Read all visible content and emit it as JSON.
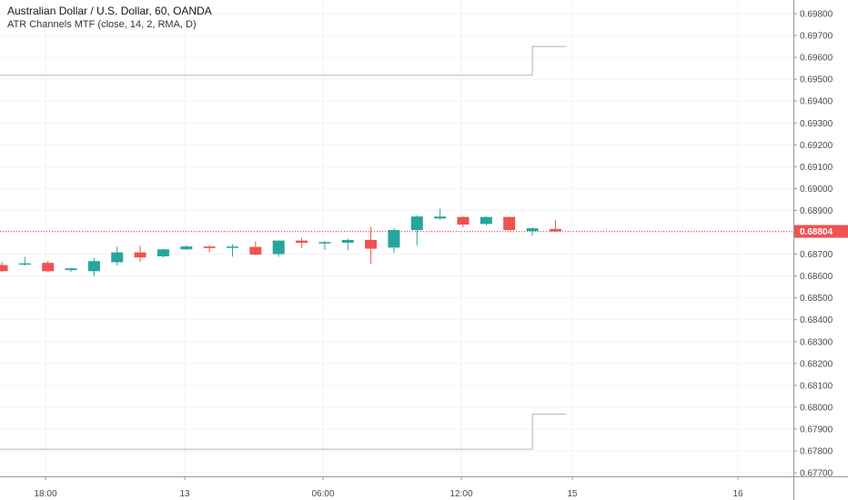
{
  "legend": {
    "symbol_line": "Australian Dollar / U.S. Dollar, 60, OANDA",
    "indicator_line": "ATR Channels MTF (close, 14, 2, RMA, D)"
  },
  "chart_data": {
    "type": "candlestick",
    "x_tick_labels": [
      "18:00",
      "13",
      "06:00",
      "12:00",
      "15",
      "16"
    ],
    "y_ticks": [
      "0.69800",
      "0.69700",
      "0.69600",
      "0.69500",
      "0.69400",
      "0.69300",
      "0.69200",
      "0.69100",
      "0.69000",
      "0.68900",
      "0.68800",
      "0.68700",
      "0.68600",
      "0.68500",
      "0.68400",
      "0.68300",
      "0.68200",
      "0.68100",
      "0.68000",
      "0.67900",
      "0.67800",
      "0.67700"
    ],
    "ylim": [
      0.6765,
      0.6985
    ],
    "last_price": "0.68804",
    "colors": {
      "up": "#26a69a",
      "down": "#ef5350",
      "channel": "#b2b5be",
      "grid": "#f0f3fa",
      "axis": "#9598a1"
    },
    "candles": [
      {
        "o": 0.6865,
        "h": 0.68665,
        "l": 0.6862,
        "c": 0.68622
      },
      {
        "o": 0.68655,
        "h": 0.68688,
        "l": 0.68648,
        "c": 0.68658
      },
      {
        "o": 0.6866,
        "h": 0.6867,
        "l": 0.68618,
        "c": 0.68622
      },
      {
        "o": 0.68627,
        "h": 0.68638,
        "l": 0.68618,
        "c": 0.68635
      },
      {
        "o": 0.68622,
        "h": 0.68683,
        "l": 0.68598,
        "c": 0.68668
      },
      {
        "o": 0.68663,
        "h": 0.68735,
        "l": 0.68648,
        "c": 0.68708
      },
      {
        "o": 0.68708,
        "h": 0.68738,
        "l": 0.68665,
        "c": 0.68685
      },
      {
        "o": 0.6869,
        "h": 0.68725,
        "l": 0.68685,
        "c": 0.68722
      },
      {
        "o": 0.68722,
        "h": 0.6874,
        "l": 0.68718,
        "c": 0.68735
      },
      {
        "o": 0.68735,
        "h": 0.6874,
        "l": 0.68708,
        "c": 0.68728
      },
      {
        "o": 0.68732,
        "h": 0.68745,
        "l": 0.68688,
        "c": 0.68735
      },
      {
        "o": 0.68733,
        "h": 0.68758,
        "l": 0.68695,
        "c": 0.68698
      },
      {
        "o": 0.687,
        "h": 0.68762,
        "l": 0.68688,
        "c": 0.68762
      },
      {
        "o": 0.68762,
        "h": 0.68775,
        "l": 0.68728,
        "c": 0.68752
      },
      {
        "o": 0.68752,
        "h": 0.6876,
        "l": 0.6872,
        "c": 0.68755
      },
      {
        "o": 0.68752,
        "h": 0.6877,
        "l": 0.68718,
        "c": 0.68765
      },
      {
        "o": 0.68765,
        "h": 0.68825,
        "l": 0.68655,
        "c": 0.68725
      },
      {
        "o": 0.6873,
        "h": 0.68818,
        "l": 0.68705,
        "c": 0.6881
      },
      {
        "o": 0.6881,
        "h": 0.68878,
        "l": 0.6874,
        "c": 0.68872
      },
      {
        "o": 0.68863,
        "h": 0.68908,
        "l": 0.68858,
        "c": 0.68872
      },
      {
        "o": 0.6887,
        "h": 0.68872,
        "l": 0.68822,
        "c": 0.68835
      },
      {
        "o": 0.68838,
        "h": 0.68872,
        "l": 0.68832,
        "c": 0.6887
      },
      {
        "o": 0.6887,
        "h": 0.68872,
        "l": 0.68808,
        "c": 0.6881
      },
      {
        "o": 0.68805,
        "h": 0.68822,
        "l": 0.68785,
        "c": 0.68818
      },
      {
        "o": 0.68815,
        "h": 0.68858,
        "l": 0.68802,
        "c": 0.68804
      }
    ],
    "channel_upper": [
      {
        "from": 0,
        "to": 23,
        "y": 0.69518
      },
      {
        "from": 23,
        "to": 24,
        "y": 0.6965
      }
    ],
    "channel_lower": [
      {
        "from": 0,
        "to": 23,
        "y": 0.67808
      },
      {
        "from": 23,
        "to": 24,
        "y": 0.67968
      }
    ]
  }
}
